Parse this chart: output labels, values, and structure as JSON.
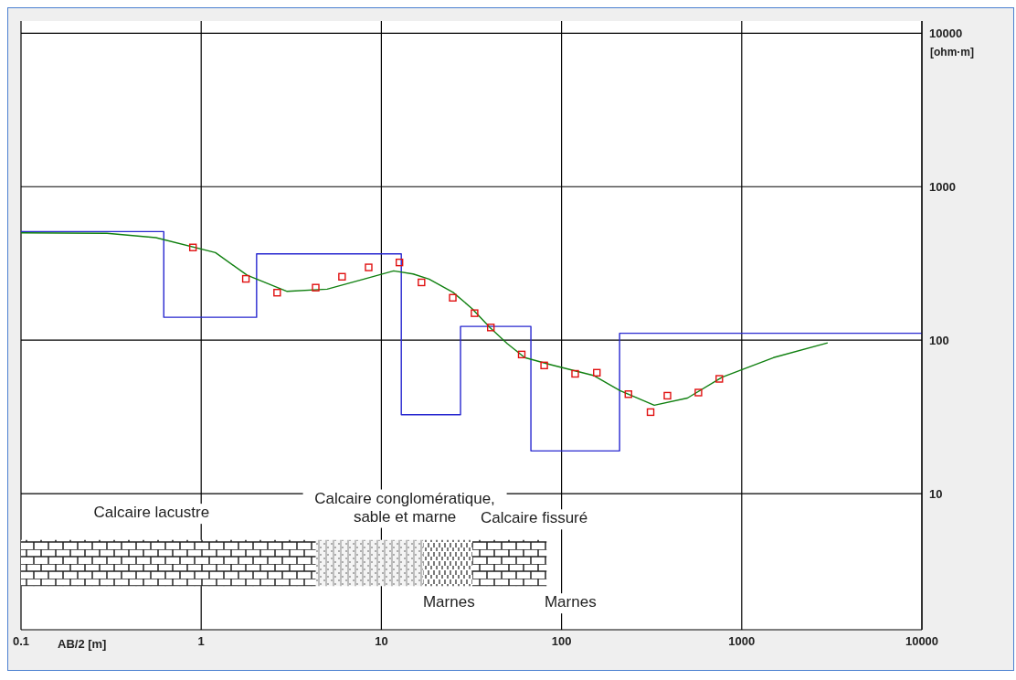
{
  "chart_data": {
    "type": "line",
    "xlabel": "AB/2 [m]",
    "ylabel": "[ohm·m]",
    "log": "xy",
    "xlim": [
      0.1,
      10000
    ],
    "ylim": [
      1.3,
      12000
    ],
    "xticks": [
      0.1,
      1,
      10,
      100,
      1000,
      10000
    ],
    "yticks": [
      10,
      100,
      1000,
      10000
    ],
    "grid": true,
    "series": [
      {
        "color": "#2828d0",
        "x": [
          0.1,
          0.62,
          0.62,
          2.03,
          2.03,
          12.9,
          12.9,
          27.5,
          27.5,
          67.6,
          67.6,
          210,
          210,
          10000
        ],
        "values": [
          510,
          510,
          141,
          141,
          365,
          365,
          32.7,
          32.7,
          123,
          123,
          19,
          19,
          111,
          111
        ]
      },
      {
        "color": "#108010",
        "x": [
          0.1,
          0.3,
          0.56,
          1.2,
          1.8,
          3,
          5,
          8,
          11.7,
          15,
          18.4,
          25,
          32,
          40,
          50,
          62.5,
          88,
          150,
          211,
          327,
          500,
          780,
          1500,
          3000
        ],
        "values": [
          500,
          497,
          466,
          372,
          265,
          208,
          215,
          250,
          283,
          270,
          250,
          205,
          160,
          121,
          95,
          77,
          69,
          59,
          47,
          37.7,
          42,
          57.5,
          77,
          96
        ]
      },
      {
        "type": "scatter",
        "color": "#e01010",
        "marker": "square",
        "x": [
          0.9,
          1.77,
          2.64,
          4.32,
          6.05,
          8.5,
          12.6,
          16.7,
          24.9,
          32.9,
          40.5,
          60.1,
          80.1,
          119,
          157,
          235,
          312,
          387,
          575,
          751
        ],
        "values": [
          402,
          251,
          204,
          220,
          259,
          298,
          321,
          238,
          189,
          150,
          121,
          80.7,
          68.5,
          60.4,
          61.4,
          44.5,
          34,
          43.5,
          45.6,
          56
        ]
      }
    ],
    "annotations": [
      "Calcaire lacustre",
      "Calcaire conglomératique,\nsable et marne",
      "Calcaire fissuré",
      "Marnes",
      "Marnes"
    ]
  }
}
